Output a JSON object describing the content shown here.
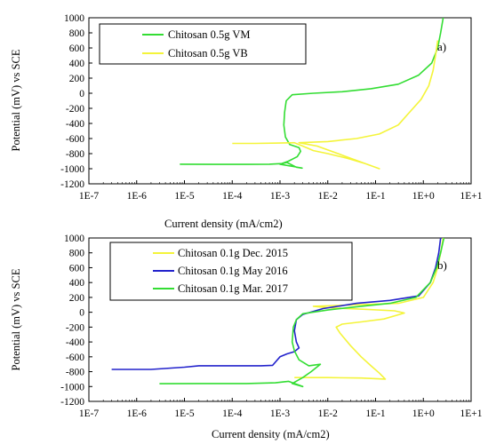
{
  "chart_data": [
    {
      "type": "line",
      "panel_label": "a)",
      "xlabel": "Current density (mA/cm2)",
      "ylabel": "Potential (mV) vs SCE",
      "xscale": "log",
      "xlim": [
        1e-07,
        10
      ],
      "ylim": [
        -1200,
        1000
      ],
      "x_tick_labels": [
        "1E-7",
        "1E-6",
        "1E-5",
        "1E-4",
        "1E-3",
        "1E-2",
        "1E-1",
        "1E+0",
        "1E+1"
      ],
      "y_ticks": [
        -1200,
        -1000,
        -800,
        -600,
        -400,
        -200,
        0,
        200,
        400,
        600,
        800,
        1000
      ],
      "legend_position": "top-left",
      "series": [
        {
          "name": "Chitosan 0.5g VM",
          "color": "#33dd33",
          "points": [
            [
              8e-06,
              -940
            ],
            [
              4e-05,
              -942
            ],
            [
              0.0002,
              -942
            ],
            [
              0.0006,
              -940
            ],
            [
              0.0011,
              -932
            ],
            [
              0.0014,
              -918
            ],
            [
              0.0022,
              -980
            ],
            [
              0.0029,
              -992
            ],
            [
              0.0022,
              -978
            ],
            [
              0.001,
              -940
            ],
            [
              0.0015,
              -900
            ],
            [
              0.0023,
              -840
            ],
            [
              0.0027,
              -770
            ],
            [
              0.0025,
              -720
            ],
            [
              0.0016,
              -680
            ],
            [
              0.0013,
              -580
            ],
            [
              0.0012,
              -420
            ],
            [
              0.00125,
              -250
            ],
            [
              0.00135,
              -100
            ],
            [
              0.0018,
              -20
            ],
            [
              0.005,
              0
            ],
            [
              0.02,
              20
            ],
            [
              0.08,
              60
            ],
            [
              0.3,
              120
            ],
            [
              0.8,
              240
            ],
            [
              1.5,
              400
            ],
            [
              2.0,
              600
            ],
            [
              2.3,
              800
            ],
            [
              2.6,
              1000
            ]
          ]
        },
        {
          "name": "Chitosan 0.5g VB",
          "color": "#f4f43a",
          "points": [
            [
              0.0001,
              -665
            ],
            [
              0.0003,
              -665
            ],
            [
              0.001,
              -660
            ],
            [
              0.002,
              -655
            ],
            [
              0.003,
              -700
            ],
            [
              0.005,
              -760
            ],
            [
              0.01,
              -800
            ],
            [
              0.025,
              -860
            ],
            [
              0.06,
              -930
            ],
            [
              0.12,
              -1000
            ],
            [
              0.06,
              -930
            ],
            [
              0.02,
              -820
            ],
            [
              0.006,
              -700
            ],
            [
              0.0025,
              -655
            ],
            [
              0.01,
              -640
            ],
            [
              0.04,
              -600
            ],
            [
              0.12,
              -540
            ],
            [
              0.3,
              -420
            ],
            [
              0.5,
              -260
            ],
            [
              0.9,
              -80
            ],
            [
              1.3,
              100
            ],
            [
              1.6,
              300
            ],
            [
              1.8,
              500
            ],
            [
              2.0,
              700
            ]
          ]
        }
      ]
    },
    {
      "type": "line",
      "panel_label": "b)",
      "xlabel": "Current density (mA/cm2)",
      "ylabel": "Potential (mV) vs SCE",
      "xscale": "log",
      "xlim": [
        1e-07,
        10
      ],
      "ylim": [
        -1200,
        1000
      ],
      "x_tick_labels": [
        "1E-7",
        "1E-6",
        "1E-5",
        "1E-4",
        "1E-3",
        "1E-2",
        "1E-1",
        "1E+0",
        "1E+1"
      ],
      "y_ticks": [
        -1200,
        -1000,
        -800,
        -600,
        -400,
        -200,
        0,
        200,
        400,
        600,
        800,
        1000
      ],
      "legend_position": "top-left",
      "series": [
        {
          "name": "Chitosan 0.1g Dec. 2015",
          "color": "#f4f43a",
          "points": [
            [
              0.002,
              -880
            ],
            [
              0.01,
              -880
            ],
            [
              0.05,
              -885
            ],
            [
              0.16,
              -900
            ],
            [
              0.12,
              -820
            ],
            [
              0.08,
              -720
            ],
            [
              0.05,
              -600
            ],
            [
              0.03,
              -450
            ],
            [
              0.018,
              -280
            ],
            [
              0.015,
              -200
            ],
            [
              0.02,
              -160
            ],
            [
              0.05,
              -130
            ],
            [
              0.15,
              -90
            ],
            [
              0.4,
              -10
            ],
            [
              0.25,
              20
            ],
            [
              0.06,
              40
            ],
            [
              0.01,
              60
            ],
            [
              0.005,
              80
            ],
            [
              0.3,
              120
            ],
            [
              1.0,
              200
            ],
            [
              1.6,
              400
            ],
            [
              2.0,
              600
            ],
            [
              2.3,
              800
            ],
            [
              2.6,
              1000
            ]
          ]
        },
        {
          "name": "Chitosan 0.1g May 2016",
          "color": "#2222cc",
          "points": [
            [
              3e-07,
              -770
            ],
            [
              2e-06,
              -770
            ],
            [
              1e-05,
              -740
            ],
            [
              2e-05,
              -720
            ],
            [
              0.0001,
              -720
            ],
            [
              0.0004,
              -720
            ],
            [
              0.0007,
              -715
            ],
            [
              0.001,
              -600
            ],
            [
              0.0014,
              -560
            ],
            [
              0.002,
              -530
            ],
            [
              0.0025,
              -480
            ],
            [
              0.0022,
              -400
            ],
            [
              0.002,
              -250
            ],
            [
              0.0022,
              -100
            ],
            [
              0.003,
              -30
            ],
            [
              0.008,
              50
            ],
            [
              0.04,
              120
            ],
            [
              0.2,
              160
            ],
            [
              0.8,
              220
            ],
            [
              1.4,
              400
            ],
            [
              1.8,
              600
            ],
            [
              2.1,
              800
            ],
            [
              2.3,
              1000
            ]
          ]
        },
        {
          "name": "Chitosan 0.1g Mar. 2017",
          "color": "#33dd33",
          "points": [
            [
              3e-06,
              -962
            ],
            [
              2e-05,
              -960
            ],
            [
              0.0002,
              -960
            ],
            [
              0.0008,
              -950
            ],
            [
              0.0015,
              -930
            ],
            [
              0.003,
              -1000
            ],
            [
              0.0018,
              -960
            ],
            [
              0.003,
              -880
            ],
            [
              0.0045,
              -800
            ],
            [
              0.007,
              -700
            ],
            [
              0.004,
              -720
            ],
            [
              0.0025,
              -640
            ],
            [
              0.002,
              -520
            ],
            [
              0.0018,
              -400
            ],
            [
              0.0019,
              -200
            ],
            [
              0.0022,
              -100
            ],
            [
              0.003,
              -20
            ],
            [
              0.01,
              30
            ],
            [
              0.05,
              80
            ],
            [
              0.2,
              120
            ],
            [
              0.7,
              200
            ],
            [
              1.4,
              400
            ],
            [
              1.9,
              600
            ],
            [
              2.3,
              800
            ],
            [
              2.7,
              1000
            ]
          ]
        }
      ]
    }
  ]
}
